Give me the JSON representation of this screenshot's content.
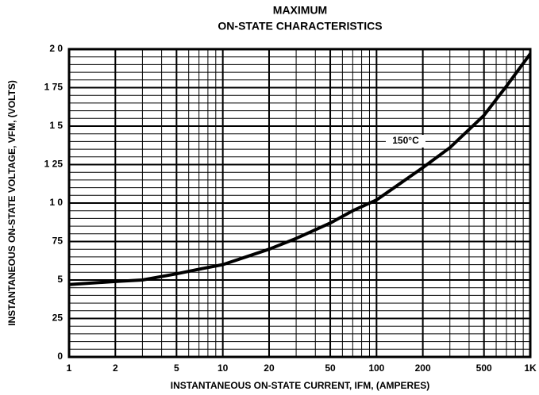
{
  "chart_data": {
    "type": "line",
    "log_x": true,
    "grid": true,
    "title": "MAXIMUM",
    "subtitle": "ON-STATE CHARACTERISTICS",
    "xlabel": "INSTANTANEOUS ON-STATE CURRENT, IFM, (AMPERES)",
    "ylabel": "INSTANTANEOUS ON-STATE VOLTAGE, VFM, (VOLTS)",
    "xlim": [
      1,
      1000
    ],
    "xticks": [
      1,
      2,
      5,
      10,
      20,
      50,
      100,
      200,
      500,
      {
        "value": 1000,
        "label": "1K"
      }
    ],
    "ylim": [
      0,
      2
    ],
    "yticks": [
      0,
      {
        "value": 0.25,
        "label": "25"
      },
      {
        "value": 0.5,
        "label": "5"
      },
      {
        "value": 0.75,
        "label": "75"
      },
      {
        "value": 1,
        "label": "1 0"
      },
      {
        "value": 1.25,
        "label": "1 25"
      },
      {
        "value": 1.5,
        "label": "1 5"
      },
      {
        "value": 1.75,
        "label": "1 75"
      },
      {
        "value": 2,
        "label": "2 0"
      }
    ],
    "x": [
      1,
      2,
      3,
      5,
      7,
      10,
      20,
      30,
      50,
      70,
      100,
      200,
      300,
      500,
      700,
      1000
    ],
    "series": [
      {
        "name": "150°C",
        "color": "#000000",
        "values": [
          0.47,
          0.49,
          0.5,
          0.54,
          0.57,
          0.6,
          0.7,
          0.77,
          0.87,
          0.95,
          1.02,
          1.23,
          1.36,
          1.57,
          1.76,
          1.97
        ]
      }
    ]
  }
}
